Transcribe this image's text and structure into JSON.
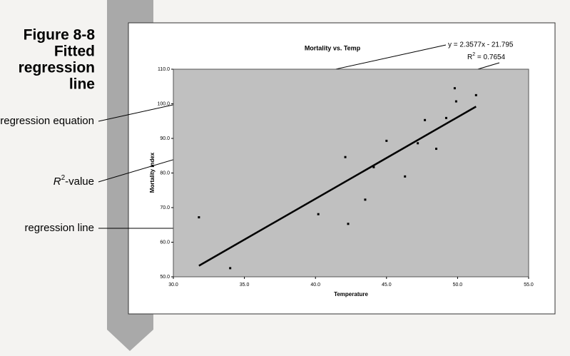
{
  "figure": {
    "caption": [
      "Figure 8-8",
      "Fitted",
      "regression",
      "line"
    ],
    "callouts": {
      "equation": "regression equation",
      "r2": [
        "R",
        "2",
        "-value"
      ],
      "line": "regression line"
    }
  },
  "chart_data": {
    "type": "scatter",
    "title": "Mortality vs. Temp",
    "x_label": "Temperature",
    "y_label": "Mortality Index",
    "equation": "y = 2.3577x - 21.795",
    "r2_label": [
      "R",
      "2",
      " = 0.7654"
    ],
    "x": [
      31.8,
      34.0,
      40.2,
      42.1,
      42.3,
      43.5,
      44.1,
      45.0,
      46.3,
      47.2,
      47.7,
      48.5,
      49.2,
      49.8,
      49.9,
      51.3
    ],
    "values": [
      67.2,
      52.5,
      68.1,
      84.6,
      65.3,
      72.3,
      81.7,
      89.3,
      79.0,
      88.6,
      95.3,
      87.0,
      95.9,
      104.5,
      100.7,
      102.5
    ],
    "color": "#000000",
    "trendline": {
      "x": [
        31.8,
        51.3
      ],
      "values": [
        53.2,
        99.2
      ],
      "color": "#000000"
    },
    "xlim": [
      30,
      55
    ],
    "ylim": [
      50,
      110
    ],
    "xticks": [
      {
        "value": 30,
        "label": "30.0"
      },
      {
        "value": 35,
        "label": "35.0"
      },
      {
        "value": 40,
        "label": "40.0"
      },
      {
        "value": 45,
        "label": "45.0"
      },
      {
        "value": 50,
        "label": "50.0"
      },
      {
        "value": 55,
        "label": "55.0"
      }
    ],
    "yticks": [
      {
        "value": 50,
        "label": "50.0"
      },
      {
        "value": 60,
        "label": "60.0"
      },
      {
        "value": 70,
        "label": "70.0"
      },
      {
        "value": 80,
        "label": "80.0"
      },
      {
        "value": 90,
        "label": "90.0"
      },
      {
        "value": 100,
        "label": "100.0"
      },
      {
        "value": 110,
        "label": "110.0"
      }
    ],
    "grid": false,
    "plot_background": "#c0c0c0"
  }
}
